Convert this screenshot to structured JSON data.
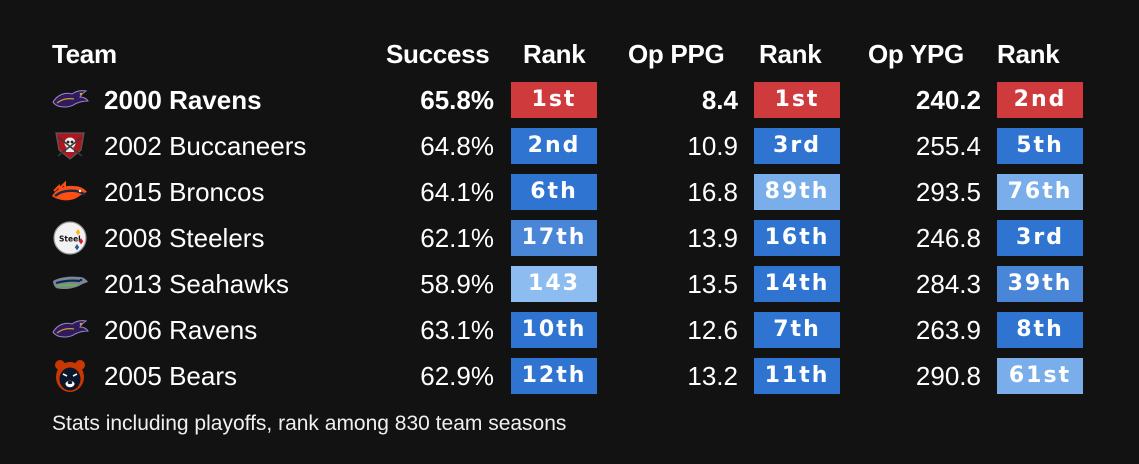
{
  "chart_data": {
    "type": "table",
    "headers": {
      "team": "Team",
      "success": "Success",
      "success_rank": "Rank",
      "op_ppg": "Op PPG",
      "op_ppg_rank": "Rank",
      "op_ypg": "Op YPG",
      "op_ypg_rank": "Rank"
    },
    "rows": [
      {
        "team": "2000 Ravens",
        "logo": "ravens-logo-icon",
        "highlight": true,
        "success": "65.8%",
        "success_rank": "1st",
        "success_tier": "top",
        "op_ppg": "8.4",
        "op_ppg_rank": "1st",
        "op_ppg_tier": "top",
        "op_ypg": "240.2",
        "op_ypg_rank": "2nd",
        "op_ypg_tier": "top"
      },
      {
        "team": "2002 Buccaneers",
        "logo": "buccaneers-logo-icon",
        "highlight": false,
        "success": "64.8%",
        "success_rank": "2nd",
        "success_tier": "high",
        "op_ppg": "10.9",
        "op_ppg_rank": "3rd",
        "op_ppg_tier": "high",
        "op_ypg": "255.4",
        "op_ypg_rank": "5th",
        "op_ypg_tier": "high"
      },
      {
        "team": "2015 Broncos",
        "logo": "broncos-logo-icon",
        "highlight": false,
        "success": "64.1%",
        "success_rank": "6th",
        "success_tier": "high",
        "op_ppg": "16.8",
        "op_ppg_rank": "89th",
        "op_ppg_tier": "low",
        "op_ypg": "293.5",
        "op_ypg_rank": "76th",
        "op_ypg_tier": "low"
      },
      {
        "team": "2008 Steelers",
        "logo": "steelers-logo-icon",
        "highlight": false,
        "success": "62.1%",
        "success_rank": "17th",
        "success_tier": "mid",
        "op_ppg": "13.9",
        "op_ppg_rank": "16th",
        "op_ppg_tier": "high",
        "op_ypg": "246.8",
        "op_ypg_rank": "3rd",
        "op_ypg_tier": "high"
      },
      {
        "team": "2013 Seahawks",
        "logo": "seahawks-logo-icon",
        "highlight": false,
        "success": "58.9%",
        "success_rank": "143",
        "success_tier": "lowest",
        "op_ppg": "13.5",
        "op_ppg_rank": "14th",
        "op_ppg_tier": "high",
        "op_ypg": "284.3",
        "op_ypg_rank": "39th",
        "op_ypg_tier": "mid"
      },
      {
        "team": "2006 Ravens",
        "logo": "ravens-logo-icon",
        "highlight": false,
        "success": "63.1%",
        "success_rank": "10th",
        "success_tier": "high",
        "op_ppg": "12.6",
        "op_ppg_rank": "7th",
        "op_ppg_tier": "high",
        "op_ypg": "263.9",
        "op_ypg_rank": "8th",
        "op_ypg_tier": "high"
      },
      {
        "team": "2005 Bears",
        "logo": "bears-logo-icon",
        "highlight": false,
        "success": "62.9%",
        "success_rank": "12th",
        "success_tier": "high",
        "op_ppg": "13.2",
        "op_ppg_rank": "11th",
        "op_ppg_tier": "high",
        "op_ypg": "290.8",
        "op_ypg_rank": "61st",
        "op_ypg_tier": "low"
      }
    ],
    "tier_colors": {
      "top": "#cf3b3d",
      "high": "#2f74d0",
      "mid": "#4a86d8",
      "low": "#79aeea",
      "lowest": "#8cbcf0"
    }
  },
  "footnote": "Stats including playoffs, rank among 830 team seasons"
}
